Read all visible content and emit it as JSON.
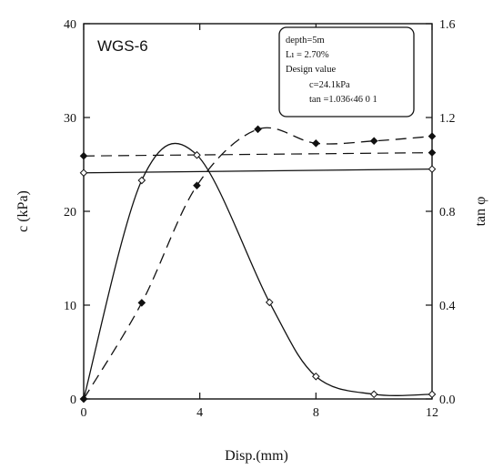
{
  "chart_data": {
    "type": "line",
    "label": "WGS-6",
    "xlabel": "Disp.(mm)",
    "ylabel": "c (kPa)",
    "y2label": "tan φ",
    "xlim": [
      0,
      12
    ],
    "ylim": [
      0,
      40
    ],
    "y2lim": [
      0,
      1.6
    ],
    "x_ticks": [
      "0",
      "4",
      "8",
      "12"
    ],
    "y_ticks": [
      "0",
      "10",
      "20",
      "30",
      "40"
    ],
    "y2_ticks": [
      "0.0",
      "0.4",
      "0.8",
      "1.2",
      "1.6"
    ],
    "grid": false,
    "annotation": [
      "depth=5m",
      "Lı = 2.70%",
      "Design value",
      "c=24.1kPa",
      "tan =1.036‹46 0  1"
    ],
    "series": [
      {
        "axis": "left",
        "style": "solid",
        "marker": "open-diamond",
        "x": [
          0,
          2,
          3.9,
          6.4,
          8,
          10,
          12
        ],
        "y": [
          0,
          23.3,
          26,
          10.3,
          2.4,
          0.5,
          0.5
        ]
      },
      {
        "axis": "right",
        "style": "dashed",
        "marker": "filled-diamond",
        "x": [
          0,
          2,
          3.9,
          6,
          8,
          10,
          12
        ],
        "y": [
          0,
          0.41,
          0.91,
          1.15,
          1.09,
          1.1,
          1.12
        ]
      }
    ],
    "reference_lines": [
      {
        "axis": "left",
        "style": "solid",
        "marker": "open-diamond",
        "y_start": 24.1,
        "y_end": 24.5
      },
      {
        "axis": "right",
        "style": "dashed",
        "marker": "filled-diamond",
        "y_start": 1.036,
        "y_end": 1.05
      }
    ]
  }
}
